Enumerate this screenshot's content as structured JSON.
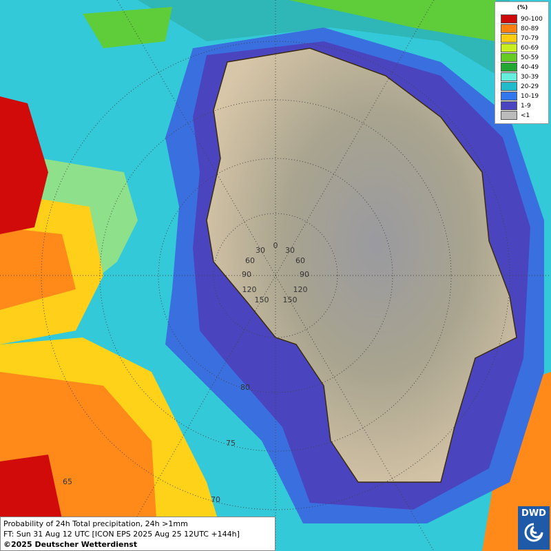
{
  "legend": {
    "unit": "(%)",
    "items": [
      {
        "label": "90-100",
        "color": "#cc0a0a"
      },
      {
        "label": "80-89",
        "color": "#ff7f10"
      },
      {
        "label": "70-79",
        "color": "#ffcc10"
      },
      {
        "label": "60-69",
        "color": "#c8ee20"
      },
      {
        "label": "50-59",
        "color": "#66cc22"
      },
      {
        "label": "40-49",
        "color": "#22a830"
      },
      {
        "label": "30-39",
        "color": "#66eedd"
      },
      {
        "label": "20-29",
        "color": "#22bbcc"
      },
      {
        "label": "10-19",
        "color": "#3377ee"
      },
      {
        "label": "1-9",
        "color": "#4a44bf"
      },
      {
        "label": "<1",
        "color": "#bbbbbb"
      }
    ]
  },
  "map": {
    "lon_labels": [
      "0",
      "30",
      "30",
      "60",
      "60",
      "90",
      "90",
      "120",
      "120",
      "150",
      "150"
    ],
    "lat_labels": [
      "80",
      "75",
      "70",
      "65"
    ]
  },
  "footer": {
    "product": "Probability of 24h Total precipitation, 24h >1mm",
    "forecast_time": "FT: Sun 31 Aug 12 UTC [ICON EPS 2025 Aug 25 12UTC +144h]",
    "copyright": "©2025 Deutscher Wetterdienst"
  },
  "logo": "DWD"
}
